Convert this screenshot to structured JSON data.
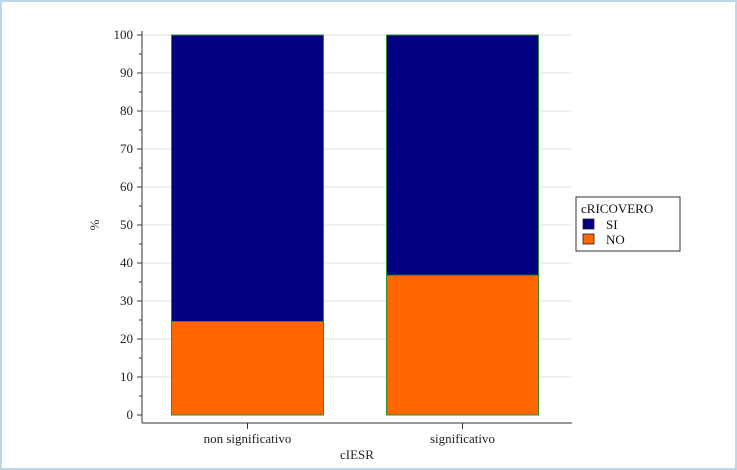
{
  "chart_data": {
    "type": "bar",
    "stacked": true,
    "categories": [
      "non significativo",
      "significativo"
    ],
    "series": [
      {
        "name": "NO",
        "values": [
          24.6,
          36.8
        ],
        "color": "#ff6600"
      },
      {
        "name": "SI",
        "values": [
          75.4,
          63.2
        ],
        "color": "#000080"
      }
    ],
    "xlabel": "cIESR",
    "ylabel": "%",
    "ylim": [
      0,
      100
    ],
    "yticks": [
      0,
      10,
      20,
      30,
      40,
      50,
      60,
      70,
      80,
      90,
      100
    ],
    "grid": true,
    "legend": {
      "title": "cRICOVERO",
      "entries": [
        {
          "label": "SI",
          "color": "#000080"
        },
        {
          "label": "NO",
          "color": "#ff6600"
        }
      ],
      "placement": "right"
    },
    "bar_edge_color": "#2e8b2e"
  }
}
